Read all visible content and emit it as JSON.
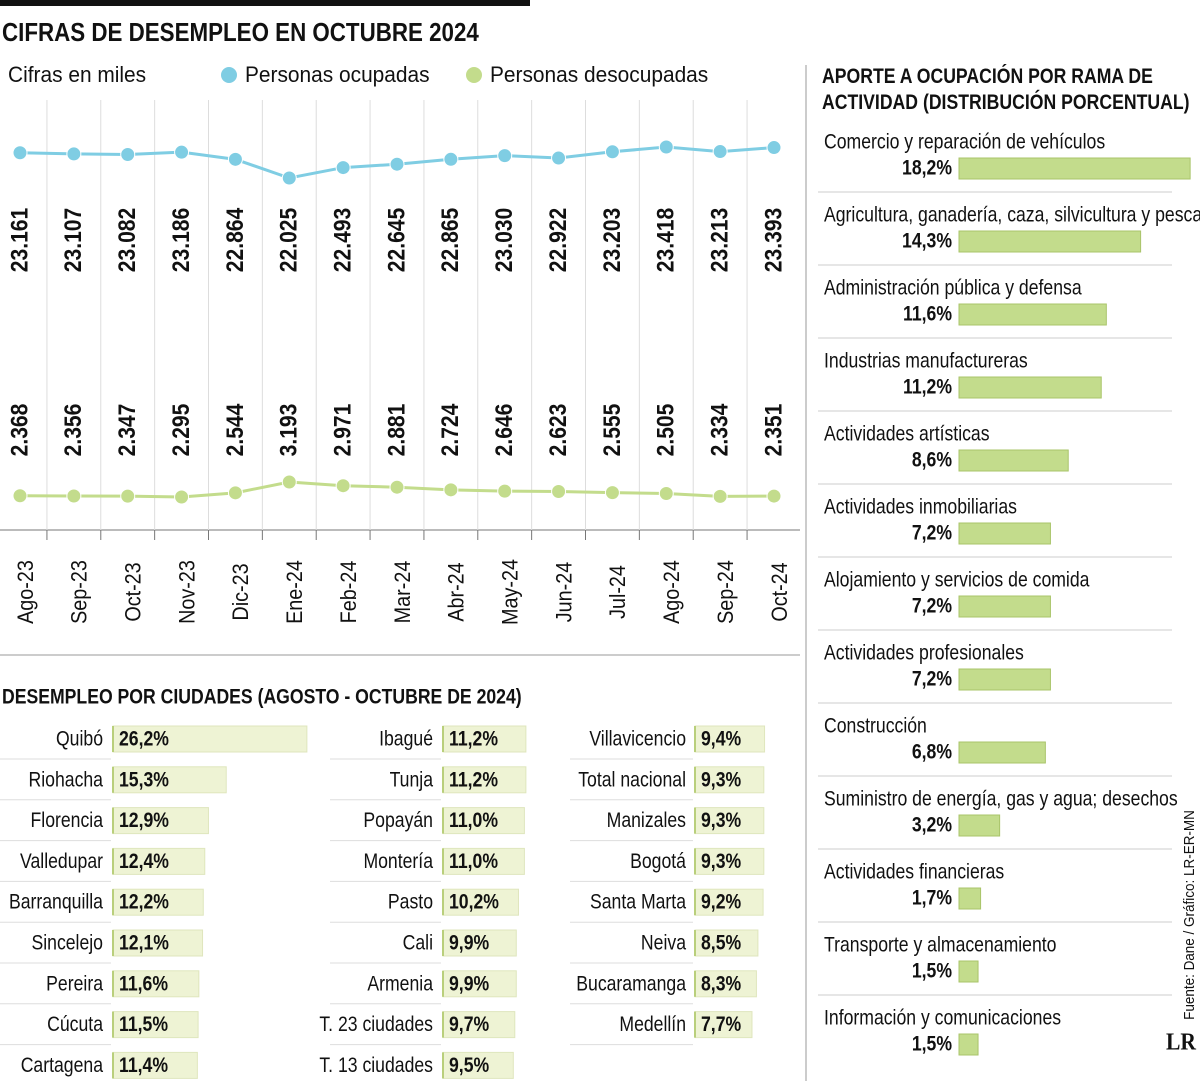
{
  "chart_data": [
    {
      "type": "line",
      "title": "CIFRAS DE DESEMPLEO EN OCTUBRE 2024",
      "subtitle": "Cifras en miles",
      "categories": [
        "Ago-23",
        "Sep-23",
        "Oct-23",
        "Nov-23",
        "Dic-23",
        "Ene-24",
        "Feb-24",
        "Mar-24",
        "Abr-24",
        "May-24",
        "Jun-24",
        "Jul-24",
        "Ago-24",
        "Sep-24",
        "Oct-24"
      ],
      "series": [
        {
          "name": "Personas ocupadas",
          "color": "#7fcde3",
          "values": [
            23161,
            23107,
            23082,
            23186,
            22864,
            22025,
            22493,
            22645,
            22865,
            23030,
            22922,
            23203,
            23418,
            23213,
            23393
          ],
          "value_labels": [
            "23.161",
            "23.107",
            "23.082",
            "23.186",
            "22.864",
            "22.025",
            "22.493",
            "22.645",
            "22.865",
            "23.030",
            "22.922",
            "23.203",
            "23.418",
            "23.213",
            "23.393"
          ]
        },
        {
          "name": "Personas desocupadas",
          "color": "#c3dc8c",
          "values": [
            2368,
            2356,
            2347,
            2295,
            2544,
            3193,
            2971,
            2881,
            2724,
            2646,
            2623,
            2555,
            2505,
            2334,
            2351
          ],
          "value_labels": [
            "2.368",
            "2.356",
            "2.347",
            "2.295",
            "2.544",
            "3.193",
            "2.971",
            "2.881",
            "2.724",
            "2.646",
            "2.623",
            "2.555",
            "2.505",
            "2.334",
            "2.351"
          ]
        }
      ],
      "grid": true
    },
    {
      "type": "bar",
      "title": "DESEMPLEO POR CIUDADES (AGOSTO - OCTUBRE DE 2024)",
      "categories": [
        "Quibó",
        "Riohacha",
        "Florencia",
        "Valledupar",
        "Barranquilla",
        "Sincelejo",
        "Pereira",
        "Cúcuta",
        "Cartagena",
        "Ibagué",
        "Tunja",
        "Popayán",
        "Montería",
        "Pasto",
        "Cali",
        "Armenia",
        "T. 23 ciudades",
        "T. 13 ciudades",
        "Villavicencio",
        "Total nacional",
        "Manizales",
        "Bogotá",
        "Santa Marta",
        "Neiva",
        "Bucaramanga",
        "Medellín"
      ],
      "values": [
        26.2,
        15.3,
        12.9,
        12.4,
        12.2,
        12.1,
        11.6,
        11.5,
        11.4,
        11.2,
        11.2,
        11.0,
        11.0,
        10.2,
        9.9,
        9.9,
        9.7,
        9.5,
        9.4,
        9.3,
        9.3,
        9.3,
        9.2,
        8.5,
        8.3,
        7.7
      ],
      "value_labels": [
        "26,2%",
        "15,3%",
        "12,9%",
        "12,4%",
        "12,2%",
        "12,1%",
        "11,6%",
        "11,5%",
        "11,4%",
        "11,2%",
        "11,2%",
        "11,0%",
        "11,0%",
        "10,2%",
        "9,9%",
        "9,9%",
        "9,7%",
        "9,5%",
        "9,4%",
        "9,3%",
        "9,3%",
        "9,3%",
        "9,2%",
        "8,5%",
        "8,3%",
        "7,7%"
      ],
      "color": "#eef3d4"
    },
    {
      "type": "bar",
      "title": "APORTE A OCUPACIÓN POR RAMA DE ACTIVIDAD (DISTRIBUCIÓN PORCENTUAL)",
      "categories": [
        "Comercio y reparación de vehículos",
        "Agricultura, ganadería, caza, silvicultura y pesca",
        "Administración pública y defensa",
        "Industrias manufactureras",
        "Actividades artísticas",
        "Actividades inmobiliarias",
        "Alojamiento y servicios de comida",
        "Actividades profesionales",
        "Construcción",
        "Suministro de energía, gas y agua; desechos",
        "Actividades financieras",
        "Transporte y almacenamiento",
        "Información y comunicaciones"
      ],
      "values": [
        18.2,
        14.3,
        11.6,
        11.2,
        8.6,
        7.2,
        7.2,
        7.2,
        6.8,
        3.2,
        1.7,
        1.5,
        1.5
      ],
      "value_labels": [
        "18,2%",
        "14,3%",
        "11,6%",
        "11,2%",
        "8,6%",
        "7,2%",
        "7,2%",
        "7,2%",
        "6,8%",
        "3,2%",
        "1,7%",
        "1,5%",
        "1,5%"
      ],
      "color": "#c3dc8c"
    }
  ],
  "source": "Fuente: Dane / Gráfico: LR-ER-MN",
  "logo": "LR"
}
